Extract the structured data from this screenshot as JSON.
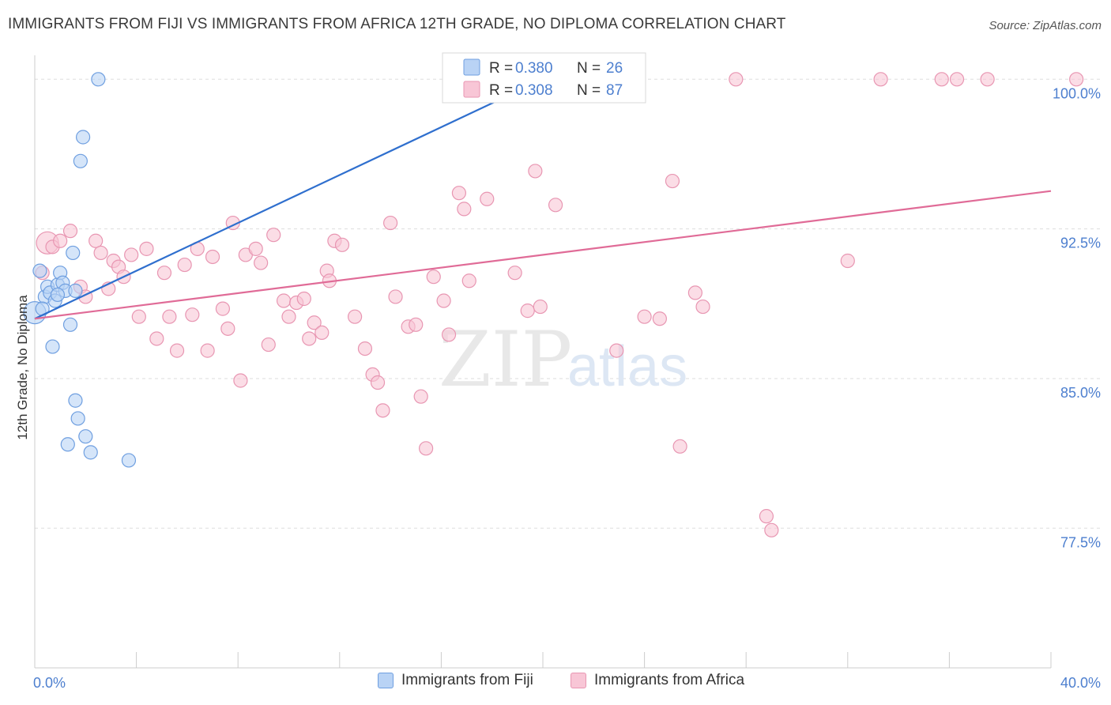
{
  "title": "IMMIGRANTS FROM FIJI VS IMMIGRANTS FROM AFRICA 12TH GRADE, NO DIPLOMA CORRELATION CHART",
  "source": "Source: ZipAtlas.com",
  "watermark": {
    "zip": "ZIP",
    "atlas": "atlas"
  },
  "colors": {
    "fiji_fill": "#b9d3f5",
    "fiji_stroke": "#6f9fe0",
    "fiji_line": "#2f6fce",
    "africa_fill": "#f8c6d6",
    "africa_stroke": "#e896b2",
    "africa_line": "#e06b97",
    "grid": "#dddddd",
    "tick_label": "#4d7fcf"
  },
  "legend": {
    "rows": [
      {
        "r_label": "R = ",
        "r_value": "0.380",
        "n_label": "N = ",
        "n_value": "26"
      },
      {
        "r_label": "R = ",
        "r_value": "0.308",
        "n_label": "N = ",
        "n_value": "87"
      }
    ]
  },
  "chart_data": {
    "type": "scatter",
    "title": "IMMIGRANTS FROM FIJI VS IMMIGRANTS FROM AFRICA 12TH GRADE, NO DIPLOMA CORRELATION CHART",
    "xlabel": "",
    "ylabel": "12th Grade, No Diploma",
    "xlim": [
      0,
      40
    ],
    "ylim": [
      70.5,
      101.2
    ],
    "x_tick_labels": [
      {
        "value": 0,
        "label": "0.0%"
      },
      {
        "value": 40,
        "label": "40.0%"
      }
    ],
    "y_tick_labels": [
      {
        "value": 100,
        "label": "100.0%"
      },
      {
        "value": 92.5,
        "label": "92.5%"
      },
      {
        "value": 85,
        "label": "85.0%"
      },
      {
        "value": 77.5,
        "label": "77.5%"
      }
    ],
    "grid": true,
    "legend_position": "top-center",
    "series": [
      {
        "name": "Immigrants from Fiji",
        "r": 0.38,
        "n": 26,
        "trend": {
          "x": [
            0,
            20
          ],
          "y": [
            88.0,
            100.0
          ]
        },
        "points": [
          [
            0.0,
            88.3
          ],
          [
            0.2,
            90.4
          ],
          [
            0.4,
            89.1
          ],
          [
            0.5,
            89.6
          ],
          [
            0.6,
            89.3
          ],
          [
            0.7,
            86.6
          ],
          [
            0.8,
            88.9
          ],
          [
            0.9,
            89.7
          ],
          [
            1.0,
            90.3
          ],
          [
            1.1,
            89.8
          ],
          [
            1.2,
            89.4
          ],
          [
            1.4,
            87.7
          ],
          [
            1.5,
            91.3
          ],
          [
            1.6,
            89.4
          ],
          [
            1.6,
            83.9
          ],
          [
            1.7,
            83.0
          ],
          [
            1.8,
            95.9
          ],
          [
            1.9,
            97.1
          ],
          [
            2.0,
            82.1
          ],
          [
            1.3,
            81.7
          ],
          [
            2.2,
            81.3
          ],
          [
            2.5,
            100.0
          ],
          [
            3.7,
            80.9
          ],
          [
            0.3,
            88.5
          ],
          [
            0.9,
            89.2
          ],
          [
            18.4,
            100.0
          ]
        ]
      },
      {
        "name": "Immigrants from Africa",
        "r": 0.308,
        "n": 87,
        "trend": {
          "x": [
            0,
            40
          ],
          "y": [
            88.0,
            94.4
          ]
        },
        "points": [
          [
            0.3,
            90.3
          ],
          [
            0.5,
            91.8
          ],
          [
            0.7,
            91.6
          ],
          [
            1.0,
            91.9
          ],
          [
            1.4,
            92.4
          ],
          [
            1.8,
            89.6
          ],
          [
            2.0,
            89.1
          ],
          [
            2.4,
            91.9
          ],
          [
            2.6,
            91.3
          ],
          [
            2.9,
            89.5
          ],
          [
            3.1,
            90.9
          ],
          [
            3.3,
            90.6
          ],
          [
            3.5,
            90.1
          ],
          [
            3.8,
            91.2
          ],
          [
            4.1,
            88.1
          ],
          [
            4.4,
            91.5
          ],
          [
            4.8,
            87.0
          ],
          [
            5.1,
            90.3
          ],
          [
            5.3,
            88.1
          ],
          [
            5.6,
            86.4
          ],
          [
            5.9,
            90.7
          ],
          [
            6.2,
            88.2
          ],
          [
            6.4,
            91.5
          ],
          [
            6.8,
            86.4
          ],
          [
            7.0,
            91.1
          ],
          [
            7.4,
            88.5
          ],
          [
            7.6,
            87.5
          ],
          [
            7.8,
            92.8
          ],
          [
            8.1,
            84.9
          ],
          [
            8.3,
            91.2
          ],
          [
            8.7,
            91.5
          ],
          [
            8.9,
            90.8
          ],
          [
            9.2,
            86.7
          ],
          [
            9.4,
            92.2
          ],
          [
            9.8,
            88.9
          ],
          [
            10.0,
            88.1
          ],
          [
            10.3,
            88.8
          ],
          [
            10.6,
            89.0
          ],
          [
            10.8,
            87.0
          ],
          [
            11.0,
            87.8
          ],
          [
            11.3,
            87.3
          ],
          [
            11.5,
            90.4
          ],
          [
            11.6,
            89.9
          ],
          [
            11.8,
            91.9
          ],
          [
            12.1,
            91.7
          ],
          [
            12.6,
            88.1
          ],
          [
            13.0,
            86.5
          ],
          [
            13.3,
            85.2
          ],
          [
            13.5,
            84.8
          ],
          [
            13.7,
            83.4
          ],
          [
            14.0,
            92.8
          ],
          [
            14.2,
            89.1
          ],
          [
            14.7,
            87.6
          ],
          [
            15.0,
            87.7
          ],
          [
            15.2,
            84.1
          ],
          [
            15.4,
            81.5
          ],
          [
            15.7,
            90.1
          ],
          [
            16.1,
            88.9
          ],
          [
            16.3,
            87.2
          ],
          [
            16.7,
            94.3
          ],
          [
            16.9,
            93.5
          ],
          [
            17.1,
            89.9
          ],
          [
            17.8,
            94.0
          ],
          [
            18.6,
            100.0
          ],
          [
            18.9,
            90.3
          ],
          [
            19.4,
            88.4
          ],
          [
            19.7,
            95.4
          ],
          [
            19.9,
            88.6
          ],
          [
            20.5,
            93.7
          ],
          [
            21.8,
            100.0
          ],
          [
            22.9,
            86.4
          ],
          [
            23.6,
            100.0
          ],
          [
            24.0,
            88.1
          ],
          [
            24.6,
            88.0
          ],
          [
            25.1,
            94.9
          ],
          [
            25.4,
            81.6
          ],
          [
            26.0,
            89.3
          ],
          [
            26.3,
            88.6
          ],
          [
            27.6,
            100.0
          ],
          [
            28.8,
            78.1
          ],
          [
            29.0,
            77.4
          ],
          [
            32.0,
            90.9
          ],
          [
            33.3,
            100.0
          ],
          [
            35.7,
            100.0
          ],
          [
            36.3,
            100.0
          ],
          [
            37.5,
            100.0
          ],
          [
            41.0,
            100.0
          ]
        ]
      }
    ]
  },
  "legend_bottom": {
    "fiji": "Immigrants from Fiji",
    "africa": "Immigrants from Africa"
  }
}
